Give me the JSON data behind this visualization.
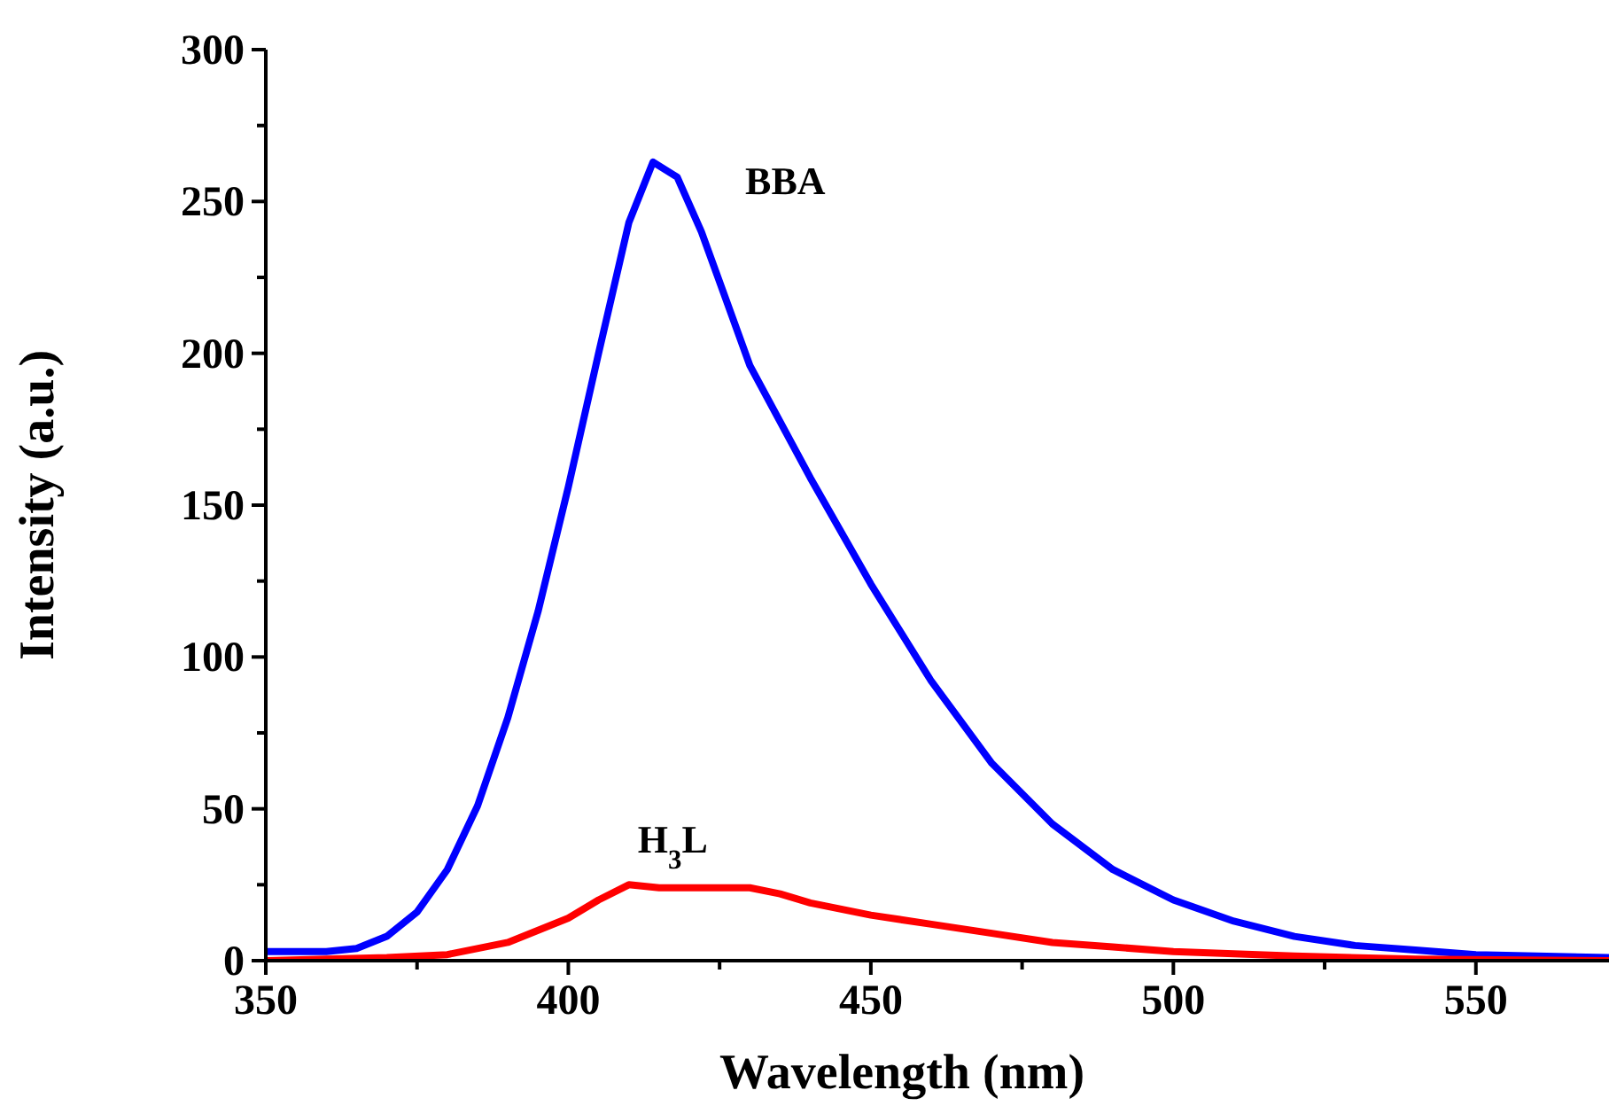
{
  "chart_data": {
    "type": "line",
    "xlabel": "Wavelength (nm)",
    "ylabel": "Intensity (a.u.)",
    "xlim": [
      350,
      572
    ],
    "ylim": [
      0,
      300
    ],
    "xticks": [
      350,
      {
        "value": 375,
        "label": null
      },
      400,
      {
        "value": 425,
        "label": null
      },
      450,
      {
        "value": 475,
        "label": null
      },
      500,
      {
        "value": 525,
        "label": null
      },
      550
    ],
    "yticks": [
      0,
      {
        "value": 25,
        "label": null
      },
      50,
      {
        "value": 75,
        "label": null
      },
      100,
      {
        "value": 125,
        "label": null
      },
      150,
      {
        "value": 175,
        "label": null
      },
      200,
      {
        "value": 225,
        "label": null
      },
      250,
      {
        "value": 275,
        "label": null
      },
      300
    ],
    "grid": false,
    "marker": "none",
    "line_style": "solid",
    "series": [
      {
        "name": "BBA",
        "color": "#0000ff",
        "x": [
          350,
          360,
          365,
          370,
          375,
          380,
          385,
          390,
          395,
          400,
          405,
          410,
          414,
          418,
          422,
          426,
          430,
          440,
          450,
          460,
          470,
          480,
          490,
          500,
          510,
          520,
          530,
          540,
          550,
          572
        ],
        "values": [
          3,
          3,
          4,
          8,
          16,
          30,
          51,
          80,
          115,
          156,
          200,
          243,
          263,
          258,
          240,
          218,
          196,
          159,
          124,
          92,
          65,
          45,
          30,
          20,
          13,
          8,
          5,
          3.5,
          2,
          1
        ]
      },
      {
        "name": "H$_{3}$L",
        "color": "#ff0000",
        "x": [
          350,
          370,
          380,
          390,
          400,
          405,
          410,
          415,
          420,
          430,
          435,
          440,
          450,
          460,
          470,
          480,
          490,
          500,
          520,
          540,
          572
        ],
        "values": [
          0,
          1,
          2,
          6,
          14,
          20,
          25,
          24,
          24,
          24,
          22,
          19,
          15,
          12,
          9,
          6,
          4.5,
          3,
          1.5,
          0.5,
          0
        ]
      }
    ]
  }
}
